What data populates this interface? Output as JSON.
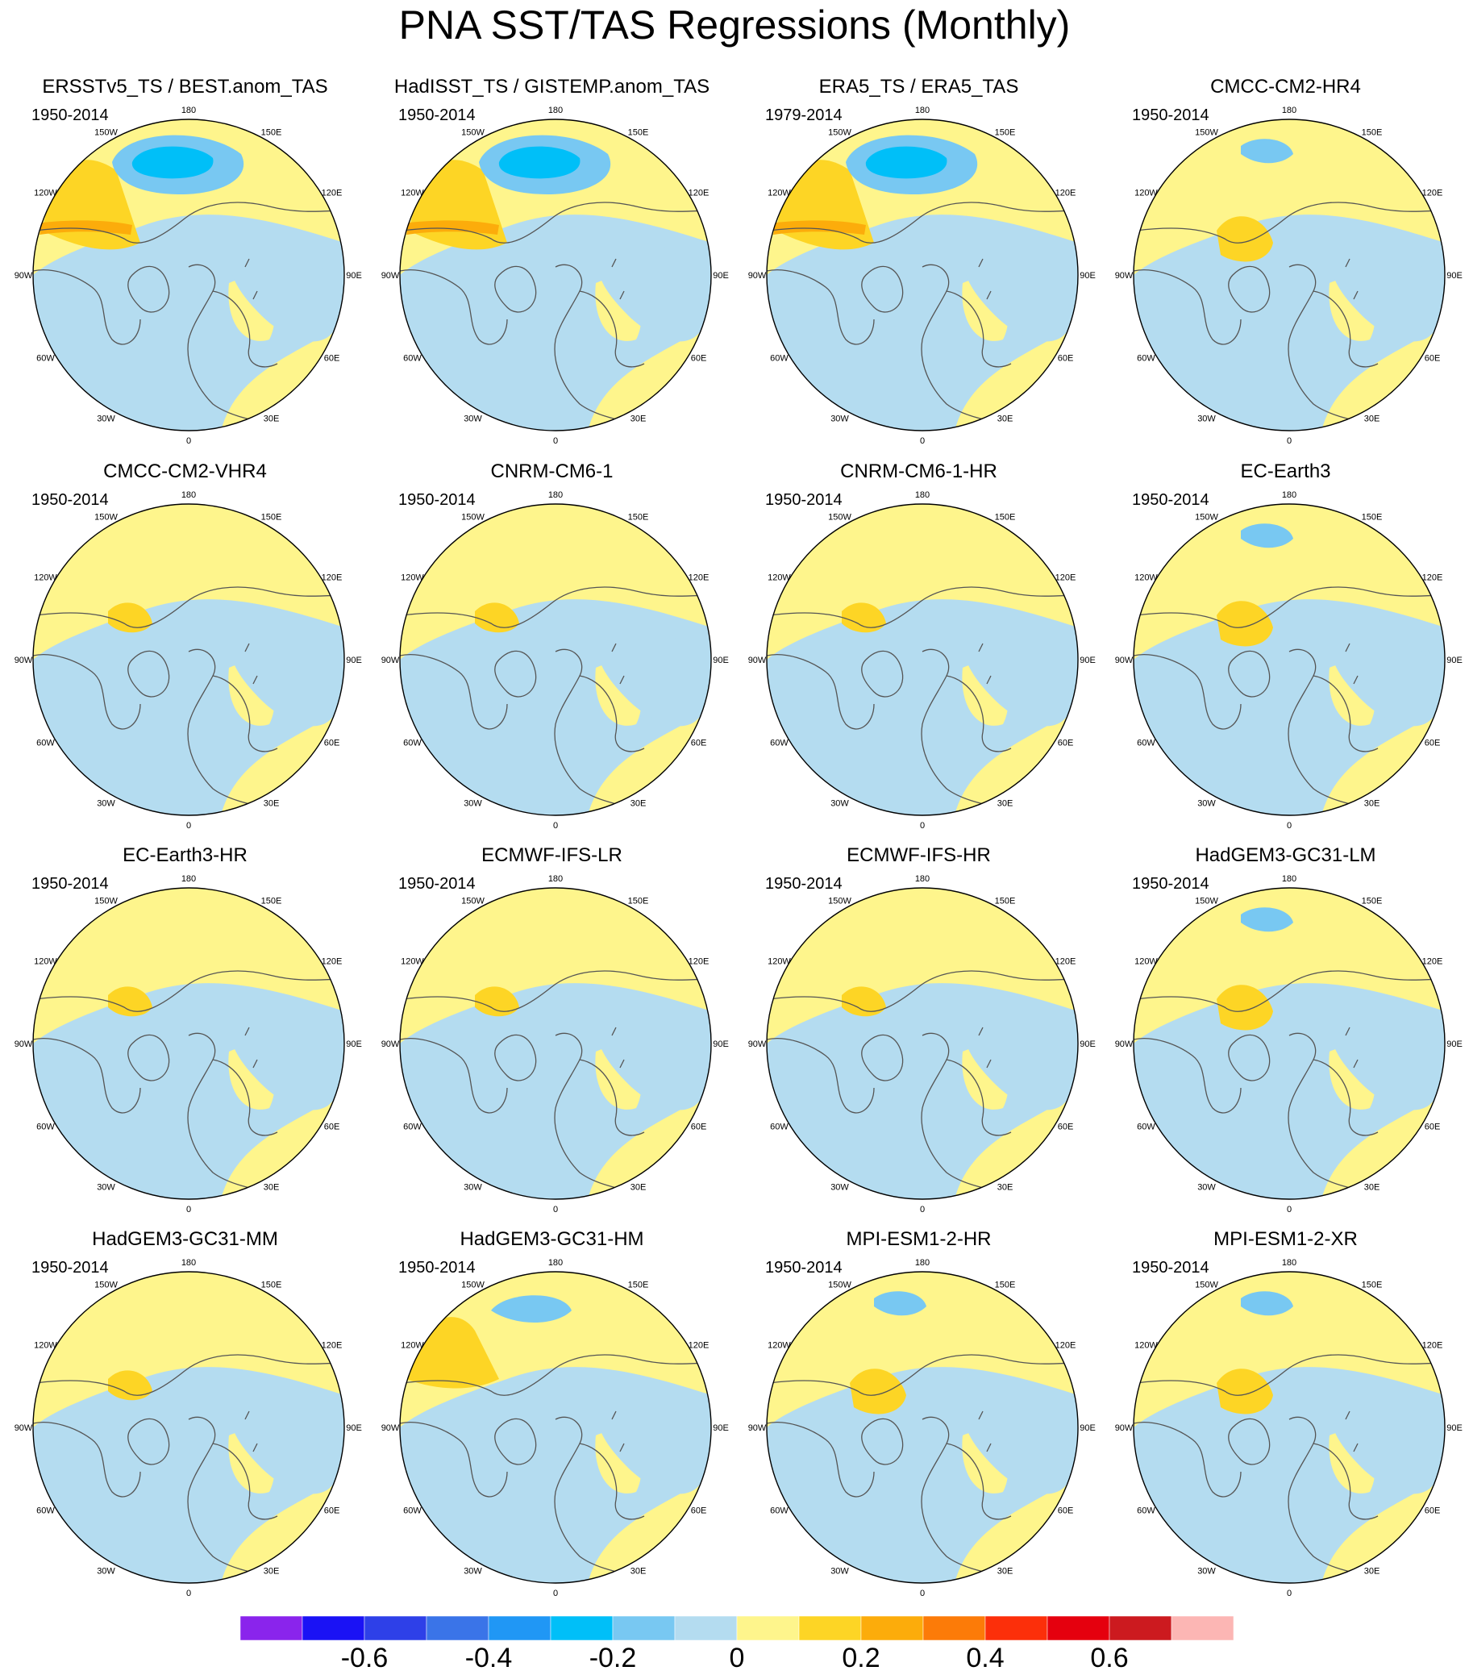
{
  "title": "PNA SST/TAS Regressions (Monthly)",
  "lon_labels": [
    "180",
    "150E",
    "120E",
    "90E",
    "60E",
    "30E",
    "0",
    "30W",
    "60W",
    "90W",
    "120W",
    "150W"
  ],
  "panels": [
    {
      "title": "ERSSTv5_TS / BEST.anom_TAS",
      "years": "1950-2014"
    },
    {
      "title": "HadISST_TS / GISTEMP.anom_TAS",
      "years": "1950-2014"
    },
    {
      "title": "ERA5_TS / ERA5_TAS",
      "years": "1979-2014"
    },
    {
      "title": "CMCC-CM2-HR4",
      "years": "1950-2014"
    },
    {
      "title": "CMCC-CM2-VHR4",
      "years": "1950-2014"
    },
    {
      "title": "CNRM-CM6-1",
      "years": "1950-2014"
    },
    {
      "title": "CNRM-CM6-1-HR",
      "years": "1950-2014"
    },
    {
      "title": "EC-Earth3",
      "years": "1950-2014"
    },
    {
      "title": "EC-Earth3-HR",
      "years": "1950-2014"
    },
    {
      "title": "ECMWF-IFS-LR",
      "years": "1950-2014"
    },
    {
      "title": "ECMWF-IFS-HR",
      "years": "1950-2014"
    },
    {
      "title": "HadGEM3-GC31-LM",
      "years": "1950-2014"
    },
    {
      "title": "HadGEM3-GC31-MM",
      "years": "1950-2014"
    },
    {
      "title": "HadGEM3-GC31-HM",
      "years": "1950-2014"
    },
    {
      "title": "MPI-ESM1-2-HR",
      "years": "1950-2014"
    },
    {
      "title": "MPI-ESM1-2-XR",
      "years": "1950-2014"
    }
  ],
  "colorbar": {
    "colors": [
      "#8a24ec",
      "#1a12f5",
      "#2e40e8",
      "#3a74e8",
      "#2097f5",
      "#00bff8",
      "#78c8f2",
      "#b4dcf0",
      "#fef58c",
      "#fdd525",
      "#fcac0b",
      "#fc7b08",
      "#fc2f0a",
      "#e5000e",
      "#cc1a1f",
      "#fcb6b4"
    ],
    "labels": [
      {
        "text": "-0.6",
        "index": 2
      },
      {
        "text": "-0.4",
        "index": 4
      },
      {
        "text": "-0.2",
        "index": 6
      },
      {
        "text": "0",
        "index": 8
      },
      {
        "text": "0.2",
        "index": 10
      },
      {
        "text": "0.4",
        "index": 12
      },
      {
        "text": "0.6",
        "index": 14
      }
    ]
  },
  "map_colors": {
    "yellow": "#fef58c",
    "light_blue": "#b4dcf0",
    "mid_blue": "#78c8f2",
    "deep_blue": "#00bff8",
    "orange_light": "#fdd525",
    "orange": "#fcac0b",
    "coast": "#555555"
  }
}
